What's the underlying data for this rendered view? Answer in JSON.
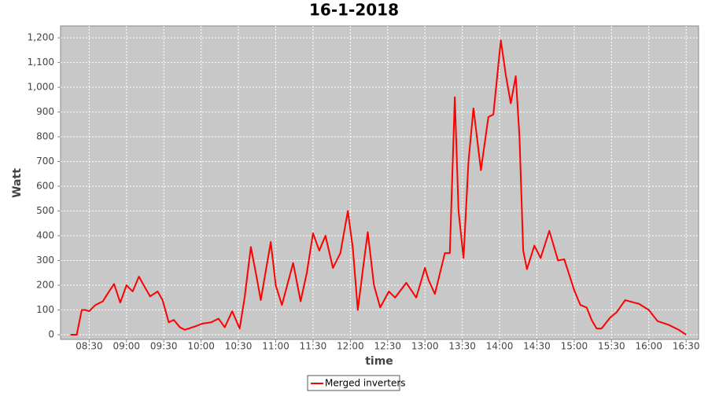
{
  "chart_data": {
    "type": "line",
    "title": "16-1-2018",
    "x_label": "time",
    "y_label": "Watt",
    "x": [
      "08:15",
      "08:20",
      "08:24",
      "08:27",
      "08:30",
      "08:35",
      "08:41",
      "08:46",
      "08:50",
      "08:55",
      "09:00",
      "09:05",
      "09:10",
      "09:15",
      "09:19",
      "09:25",
      "09:29",
      "09:34",
      "09:38",
      "09:43",
      "09:47",
      "09:56",
      "10:01",
      "10:08",
      "10:14",
      "10:19",
      "10:25",
      "10:31",
      "10:35",
      "10:40",
      "10:44",
      "10:48",
      "10:56",
      "11:00",
      "11:05",
      "11:14",
      "11:20",
      "11:25",
      "11:30",
      "11:35",
      "11:40",
      "11:46",
      "11:52",
      "11:58",
      "12:02",
      "12:06",
      "12:10",
      "12:14",
      "12:19",
      "12:24",
      "12:31",
      "12:36",
      "12:45",
      "12:53",
      "13:00",
      "13:03",
      "13:08",
      "13:16",
      "13:20",
      "13:24",
      "13:27",
      "13:31",
      "13:35",
      "13:39",
      "13:45",
      "13:51",
      "13:55",
      "14:01",
      "14:05",
      "14:09",
      "14:13",
      "14:16",
      "14:19",
      "14:22",
      "14:28",
      "14:33",
      "14:40",
      "14:47",
      "14:52",
      "15:00",
      "15:05",
      "15:10",
      "15:14",
      "15:18",
      "15:22",
      "15:29",
      "15:34",
      "15:41",
      "15:48",
      "15:52",
      "16:00",
      "16:07",
      "16:16",
      "16:24",
      "16:30"
    ],
    "series": [
      {
        "name": "Merged inverters",
        "color": "#ff0000",
        "values": [
          0,
          0,
          100,
          100,
          95,
          120,
          135,
          175,
          205,
          130,
          200,
          175,
          235,
          190,
          155,
          175,
          140,
          50,
          60,
          30,
          20,
          35,
          45,
          50,
          65,
          30,
          95,
          25,
          150,
          355,
          250,
          140,
          375,
          200,
          120,
          290,
          135,
          250,
          410,
          340,
          400,
          270,
          330,
          500,
          350,
          100,
          260,
          415,
          200,
          110,
          175,
          150,
          210,
          150,
          270,
          220,
          165,
          330,
          330,
          960,
          500,
          310,
          700,
          915,
          665,
          880,
          890,
          1190,
          1050,
          935,
          1045,
          800,
          340,
          265,
          360,
          310,
          420,
          300,
          305,
          180,
          120,
          110,
          60,
          25,
          25,
          70,
          90,
          140,
          130,
          125,
          100,
          55,
          40,
          20,
          0
        ]
      }
    ],
    "xlim": [
      "08:07",
      "16:40"
    ],
    "xticks": [
      "08:30",
      "09:00",
      "09:30",
      "10:00",
      "10:30",
      "11:00",
      "11:30",
      "12:00",
      "12:30",
      "13:00",
      "13:30",
      "14:00",
      "14:30",
      "15:00",
      "15:30",
      "16:00",
      "16:30"
    ],
    "ylim": [
      -19,
      1248
    ],
    "yticks": [
      0,
      100,
      200,
      300,
      400,
      500,
      600,
      700,
      800,
      900,
      {
        "value": 1000,
        "label": "1,000"
      },
      {
        "value": 1100,
        "label": "1,100"
      },
      {
        "value": 1200,
        "label": "1,200"
      }
    ],
    "grid": true,
    "legend": "bottom"
  }
}
